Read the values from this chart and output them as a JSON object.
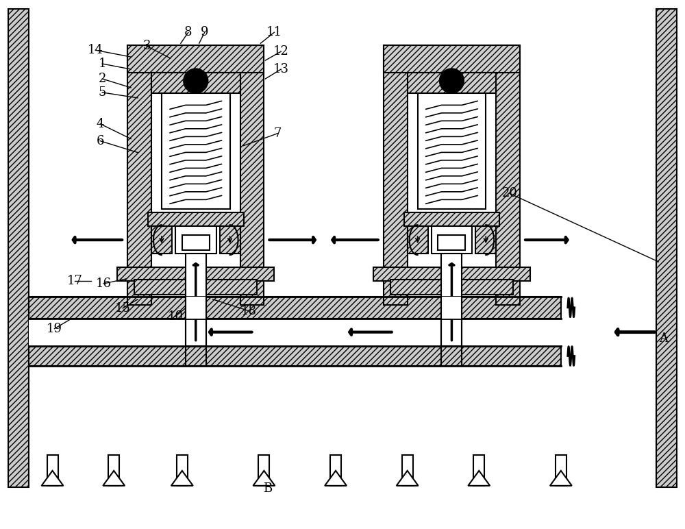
{
  "bg_color": "#ffffff",
  "lw": 1.5,
  "lw2": 2.0,
  "hatch": "////",
  "label_fontsize": 13
}
